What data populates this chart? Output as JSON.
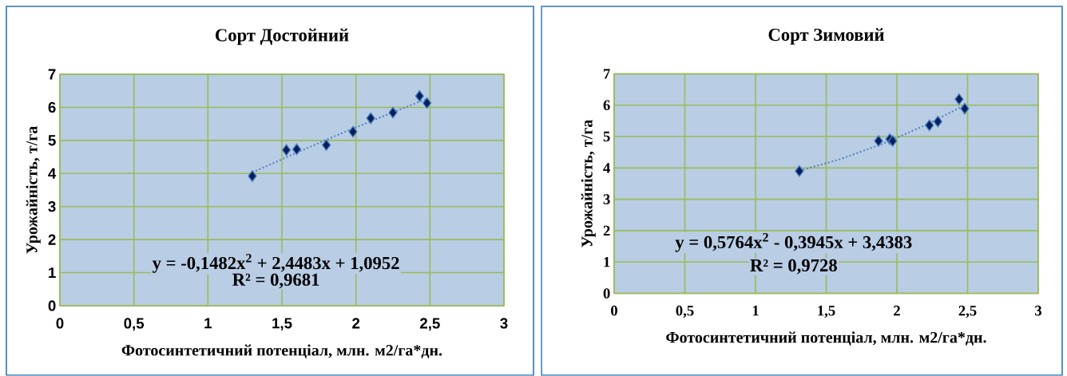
{
  "chart_data": [
    {
      "type": "scatter",
      "title": "Сорт Достойний",
      "xlabel": "Фотосинтетичний  потенціал,  млн. м2/га*дн.",
      "ylabel": "Урожайність,  т/га",
      "series": [
        {
          "type": "scatter",
          "color": "#002060",
          "marker": "diamond",
          "x": [
            1.3,
            1.53,
            1.6,
            1.8,
            1.98,
            2.1,
            2.25,
            2.43,
            2.48
          ],
          "values": [
            3.92,
            4.71,
            4.73,
            4.86,
            5.26,
            5.67,
            5.84,
            6.34,
            6.13
          ]
        },
        {
          "type": "line",
          "color": "#4f81bd",
          "marker": "none",
          "line_style": "dotted",
          "x": [
            1.3,
            1.6,
            1.9,
            2.2,
            2.48
          ],
          "values": [
            4.03,
            4.63,
            5.21,
            5.76,
            6.26
          ]
        }
      ],
      "xlim": [
        0,
        3
      ],
      "ylim": [
        0,
        7
      ],
      "xticks": [
        0,
        {
          "value": 0.5,
          "label": "0,5"
        },
        1,
        {
          "value": 1.5,
          "label": "1,5"
        },
        2,
        {
          "value": 2.5,
          "label": "2,5"
        },
        3
      ],
      "yticks": [
        0,
        1,
        2,
        3,
        4,
        5,
        6,
        7
      ],
      "grid": true,
      "annotations": [
        "y = -0,1482x$^{2}$ + 2,4483x + 1,0952",
        "R² = 0,9681"
      ]
    },
    {
      "type": "scatter",
      "title": "Сорт Зимовий",
      "xlabel": "Фотосинтетичний  потенціал,  млн. м2/га*дн.",
      "ylabel": "Урожайність,  т/га",
      "series": [
        {
          "type": "scatter",
          "color": "#002060",
          "marker": "diamond",
          "x": [
            1.31,
            1.87,
            1.95,
            1.97,
            2.23,
            2.29,
            2.44,
            2.48
          ],
          "values": [
            3.9,
            4.86,
            4.92,
            4.86,
            5.36,
            5.48,
            6.19,
            5.89
          ]
        },
        {
          "type": "line",
          "color": "#4f81bd",
          "marker": "none",
          "line_style": "dotted",
          "x": [
            1.31,
            1.6,
            1.9,
            2.2,
            2.48
          ],
          "values": [
            3.91,
            4.28,
            4.77,
            5.36,
            6.0
          ]
        }
      ],
      "xlim": [
        0,
        3
      ],
      "ylim": [
        0,
        7
      ],
      "xticks": [
        0,
        {
          "value": 0.5,
          "label": "0,5"
        },
        1,
        {
          "value": 1.5,
          "label": "1,5"
        },
        2,
        {
          "value": 2.5,
          "label": "2,5"
        },
        3
      ],
      "yticks": [
        0,
        1,
        2,
        3,
        4,
        5,
        6,
        7
      ],
      "grid": true,
      "annotations": [
        "y = 0,5764x$^{2}$ - 0,3945x + 3,4383",
        "R² = 0,9728"
      ]
    }
  ]
}
